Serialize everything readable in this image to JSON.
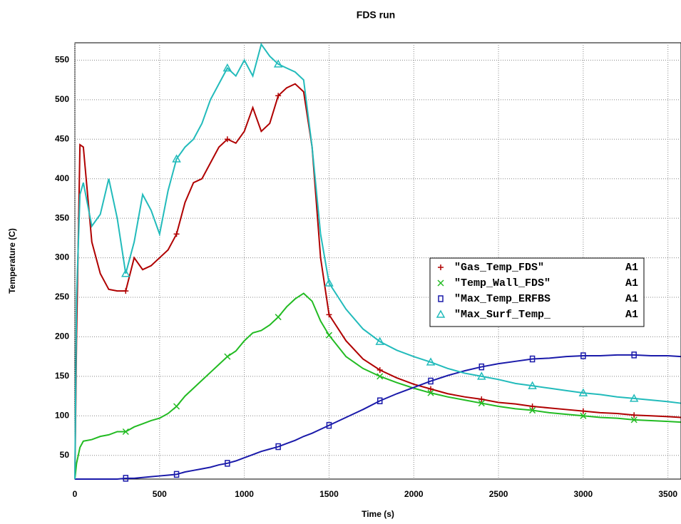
{
  "chart_data": {
    "type": "line",
    "title": "FDS run",
    "x_label": "Time (s)",
    "y_label": "Temperature  (C)",
    "x": [
      0,
      10,
      30,
      50,
      100,
      150,
      200,
      250,
      300,
      350,
      400,
      450,
      500,
      550,
      600,
      650,
      700,
      750,
      800,
      850,
      900,
      950,
      1000,
      1050,
      1100,
      1150,
      1200,
      1250,
      1300,
      1350,
      1400,
      1450,
      1500,
      1600,
      1700,
      1800,
      1900,
      2000,
      2100,
      2200,
      2300,
      2400,
      2500,
      2600,
      2700,
      2800,
      2900,
      3000,
      3100,
      3200,
      3300,
      3400,
      3500,
      3575
    ],
    "series": [
      {
        "name": "\"Gas_Temp_FDS\"",
        "tag": "A1",
        "color": "#b00000",
        "marker": "plus",
        "values": [
          20,
          200,
          443,
          440,
          320,
          280,
          260,
          258,
          258,
          300,
          285,
          290,
          300,
          310,
          330,
          370,
          395,
          400,
          420,
          440,
          450,
          445,
          460,
          490,
          460,
          470,
          505,
          515,
          520,
          510,
          440,
          300,
          228,
          195,
          172,
          158,
          148,
          140,
          134,
          128,
          124,
          121,
          117,
          115,
          112,
          110,
          108,
          106,
          104,
          103,
          101,
          100,
          99,
          98
        ]
      },
      {
        "name": "\"Temp_Wall_FDS\"",
        "tag": "A1",
        "color": "#22bb22",
        "marker": "cross",
        "values": [
          20,
          40,
          60,
          68,
          70,
          74,
          76,
          80,
          80,
          86,
          90,
          94,
          97,
          103,
          112,
          125,
          135,
          145,
          155,
          165,
          175,
          182,
          195,
          205,
          208,
          215,
          225,
          238,
          248,
          255,
          245,
          220,
          202,
          175,
          160,
          150,
          142,
          135,
          129,
          124,
          120,
          116,
          112,
          109,
          107,
          104,
          102,
          100,
          98,
          97,
          95,
          94,
          93,
          92
        ]
      },
      {
        "name": "\"Max_Temp_ERFBS",
        "tag": "A1",
        "color": "#1a1aaa",
        "marker": "square",
        "values": [
          20,
          20,
          20,
          20,
          20,
          20,
          20,
          20,
          21,
          21,
          22,
          23,
          24,
          25,
          26,
          29,
          31,
          33,
          35,
          38,
          40,
          43,
          47,
          51,
          55,
          58,
          61,
          65,
          69,
          74,
          78,
          83,
          88,
          98,
          108,
          119,
          128,
          136,
          144,
          151,
          157,
          162,
          166,
          169,
          172,
          173,
          175,
          176,
          176,
          177,
          177,
          176,
          176,
          175
        ]
      },
      {
        "name": "\"Max_Surf_Temp_",
        "tag": "A1",
        "color": "#22bbbb",
        "marker": "triangle",
        "values": [
          20,
          250,
          380,
          395,
          340,
          355,
          400,
          350,
          280,
          320,
          380,
          360,
          330,
          385,
          425,
          440,
          450,
          470,
          500,
          520,
          540,
          530,
          550,
          530,
          570,
          555,
          545,
          540,
          535,
          525,
          440,
          330,
          268,
          235,
          210,
          194,
          183,
          175,
          168,
          160,
          154,
          150,
          146,
          141,
          138,
          135,
          132,
          129,
          127,
          124,
          122,
          120,
          118,
          116
        ]
      }
    ],
    "marker_every": 300,
    "xlim": [
      0,
      3577
    ],
    "ylim": [
      20,
      572
    ],
    "xticks": [
      0,
      500,
      1000,
      1500,
      2000,
      2500,
      3000,
      3500
    ],
    "yticks": [
      50,
      100,
      150,
      200,
      250,
      300,
      350,
      400,
      450,
      500,
      550
    ],
    "grid": true,
    "legend": "center right"
  }
}
